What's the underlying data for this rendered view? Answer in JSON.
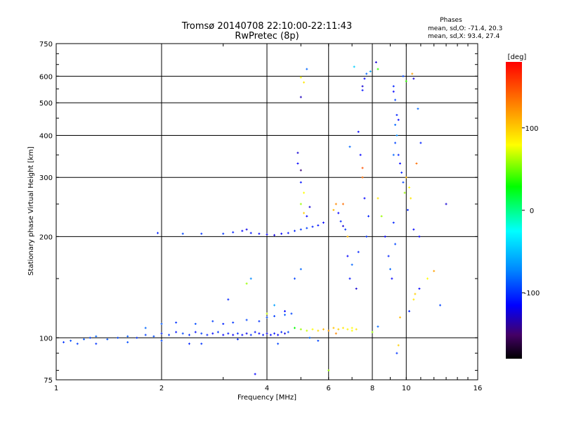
{
  "header": {
    "title": "Tromsø 20140708 22:10:00-22:11:43",
    "subtitle": "RwPretec (8p)",
    "phases_heading": "Phases",
    "phases_o": "mean, sd,O: -71.4, 20.3",
    "phases_x": "mean, sd,X:  93.4, 27.4"
  },
  "chart_data": {
    "type": "scatter",
    "xlabel": "Frequency [MHz]",
    "ylabel": "Stationary phase Virtual Height [km]",
    "x_scale": "log",
    "y_scale": "log",
    "xlim": [
      1,
      16
    ],
    "ylim": [
      75,
      750
    ],
    "x_ticks": [
      1,
      2,
      4,
      6,
      8,
      10,
      16
    ],
    "x_tick_labels": [
      "1",
      "2",
      "4",
      "6",
      "8",
      "10",
      "16"
    ],
    "y_ticks": [
      75,
      100,
      200,
      300,
      400,
      500,
      600,
      750
    ],
    "y_tick_labels": [
      "75",
      "100",
      "200",
      "300",
      "400",
      "500",
      "600",
      "750"
    ],
    "grid": true,
    "colorbar": {
      "label": "[deg]",
      "range": [
        -180,
        180
      ],
      "ticks": [
        100,
        0,
        -100
      ],
      "tick_labels": [
        "100",
        "0",
        "-100"
      ]
    },
    "series": [
      {
        "comment_free_points": true,
        "points": [
          [
            1.05,
            97,
            -95
          ],
          [
            1.1,
            98,
            -88
          ],
          [
            1.15,
            96,
            -92
          ],
          [
            1.2,
            99,
            -85
          ],
          [
            1.25,
            100,
            -90
          ],
          [
            1.3,
            101,
            -80
          ],
          [
            1.4,
            99,
            -86
          ],
          [
            1.5,
            100,
            -90
          ],
          [
            1.6,
            101,
            -84
          ],
          [
            1.7,
            100,
            -96
          ],
          [
            1.8,
            102,
            -92
          ],
          [
            1.9,
            101,
            -88
          ],
          [
            2.0,
            103,
            -100
          ],
          [
            2.1,
            102,
            -94
          ],
          [
            2.2,
            104,
            -104
          ],
          [
            2.3,
            103,
            -90
          ],
          [
            2.4,
            102,
            -98
          ],
          [
            2.5,
            104,
            -106
          ],
          [
            2.6,
            103,
            -92
          ],
          [
            2.7,
            102,
            -100
          ],
          [
            2.8,
            103,
            -108
          ],
          [
            2.9,
            104,
            -96
          ],
          [
            3.0,
            102,
            -110
          ],
          [
            3.1,
            103,
            -104
          ],
          [
            3.2,
            102,
            -112
          ],
          [
            3.3,
            103,
            -100
          ],
          [
            3.4,
            102,
            -108
          ],
          [
            3.5,
            103,
            -114
          ],
          [
            3.6,
            102,
            -98
          ],
          [
            3.7,
            104,
            -106
          ],
          [
            3.8,
            103,
            -110
          ],
          [
            3.9,
            102,
            -102
          ],
          [
            4.0,
            103,
            -116
          ],
          [
            4.1,
            102,
            -108
          ],
          [
            4.2,
            103,
            -104
          ],
          [
            4.3,
            102,
            -112
          ],
          [
            4.4,
            104,
            -100
          ],
          [
            4.5,
            103,
            -118
          ],
          [
            4.6,
            104,
            -90
          ],
          [
            4.8,
            107,
            30
          ],
          [
            5.0,
            106,
            60
          ],
          [
            5.2,
            105,
            70
          ],
          [
            5.4,
            106,
            80
          ],
          [
            5.6,
            105,
            95
          ],
          [
            5.8,
            106,
            110
          ],
          [
            6.0,
            105,
            120
          ],
          [
            6.2,
            107,
            105
          ],
          [
            6.4,
            106,
            100
          ],
          [
            6.6,
            107,
            90
          ],
          [
            6.8,
            106,
            85
          ],
          [
            7.0,
            107,
            80
          ],
          [
            1.8,
            107,
            -80
          ],
          [
            2.0,
            110,
            -85
          ],
          [
            2.2,
            111,
            -95
          ],
          [
            2.5,
            110,
            -88
          ],
          [
            2.8,
            112,
            -92
          ],
          [
            3.0,
            110,
            -100
          ],
          [
            3.2,
            111,
            -94
          ],
          [
            3.5,
            113,
            -90
          ],
          [
            3.8,
            112,
            -96
          ],
          [
            4.0,
            115,
            -88
          ],
          [
            4.2,
            116,
            -92
          ],
          [
            4.5,
            117,
            -84
          ],
          [
            4.7,
            118,
            -90
          ],
          [
            3.0,
            204,
            -95
          ],
          [
            3.2,
            206,
            -100
          ],
          [
            3.4,
            208,
            -110
          ],
          [
            3.5,
            210,
            -115
          ],
          [
            3.6,
            205,
            -105
          ],
          [
            3.8,
            204,
            -108
          ],
          [
            4.0,
            203,
            -112
          ],
          [
            4.2,
            202,
            -118
          ],
          [
            4.4,
            204,
            -110
          ],
          [
            4.6,
            205,
            -104
          ],
          [
            4.8,
            208,
            -100
          ],
          [
            5.0,
            210,
            -95
          ],
          [
            5.2,
            212,
            -92
          ],
          [
            5.4,
            214,
            -100
          ],
          [
            5.6,
            216,
            -105
          ],
          [
            5.8,
            220,
            -110
          ],
          [
            1.95,
            205,
            -100
          ],
          [
            2.3,
            204,
            -90
          ],
          [
            2.6,
            204,
            -95
          ],
          [
            4.9,
            355,
            -120
          ],
          [
            4.9,
            330,
            -110
          ],
          [
            5.0,
            315,
            -140
          ],
          [
            5.0,
            290,
            -105
          ],
          [
            5.1,
            270,
            80
          ],
          [
            5.0,
            250,
            60
          ],
          [
            5.1,
            235,
            100
          ],
          [
            5.2,
            230,
            -110
          ],
          [
            5.3,
            245,
            -120
          ],
          [
            5.0,
            520,
            -125
          ],
          [
            5.1,
            575,
            90
          ],
          [
            5.2,
            630,
            -80
          ],
          [
            5.0,
            595,
            80
          ],
          [
            6.2,
            240,
            110
          ],
          [
            6.3,
            250,
            130
          ],
          [
            6.4,
            235,
            -110
          ],
          [
            6.5,
            222,
            -100
          ],
          [
            6.6,
            215,
            -120
          ],
          [
            6.7,
            210,
            -95
          ],
          [
            6.8,
            200,
            110
          ],
          [
            6.6,
            250,
            140
          ],
          [
            6.8,
            175,
            -110
          ],
          [
            6.9,
            150,
            -105
          ],
          [
            7.0,
            165,
            -80
          ],
          [
            7.2,
            140,
            -120
          ],
          [
            7.3,
            180,
            -100
          ],
          [
            7.4,
            350,
            -110
          ],
          [
            7.5,
            320,
            150
          ],
          [
            7.5,
            300,
            140
          ],
          [
            7.6,
            260,
            -110
          ],
          [
            7.7,
            200,
            -95
          ],
          [
            7.8,
            230,
            -100
          ],
          [
            7.5,
            545,
            -105
          ],
          [
            7.5,
            560,
            -120
          ],
          [
            7.6,
            590,
            -110
          ],
          [
            7.7,
            610,
            -80
          ],
          [
            7.9,
            620,
            -60
          ],
          [
            8.2,
            660,
            -120
          ],
          [
            8.3,
            630,
            40
          ],
          [
            7.3,
            410,
            -110
          ],
          [
            7.1,
            640,
            -40
          ],
          [
            6.9,
            370,
            -80
          ],
          [
            8.5,
            230,
            60
          ],
          [
            8.3,
            260,
            90
          ],
          [
            8.7,
            200,
            -110
          ],
          [
            8.9,
            175,
            -100
          ],
          [
            9.0,
            160,
            -80
          ],
          [
            9.2,
            560,
            -100
          ],
          [
            9.2,
            540,
            -110
          ],
          [
            9.3,
            510,
            -90
          ],
          [
            9.4,
            460,
            -100
          ],
          [
            9.5,
            445,
            -110
          ],
          [
            9.3,
            430,
            -80
          ],
          [
            9.4,
            400,
            -70
          ],
          [
            9.3,
            380,
            -90
          ],
          [
            9.5,
            350,
            -100
          ],
          [
            9.6,
            330,
            -110
          ],
          [
            9.7,
            310,
            -100
          ],
          [
            9.8,
            290,
            -90
          ],
          [
            9.9,
            270,
            60
          ],
          [
            10.0,
            300,
            110
          ],
          [
            10.2,
            280,
            80
          ],
          [
            10.3,
            260,
            90
          ],
          [
            10.1,
            240,
            -100
          ],
          [
            9.8,
            600,
            -90
          ],
          [
            10.0,
            580,
            40
          ],
          [
            10.4,
            610,
            120
          ],
          [
            10.5,
            590,
            -120
          ],
          [
            10.7,
            330,
            140
          ],
          [
            10.5,
            210,
            -110
          ],
          [
            10.8,
            480,
            -80
          ],
          [
            11.0,
            380,
            -100
          ],
          [
            10.9,
            200,
            -110
          ],
          [
            9.2,
            350,
            -80
          ],
          [
            9.2,
            220,
            -100
          ],
          [
            9.3,
            190,
            -90
          ],
          [
            9.1,
            150,
            -110
          ],
          [
            9.4,
            90,
            -95
          ],
          [
            9.5,
            95,
            100
          ],
          [
            9.6,
            115,
            110
          ],
          [
            10.2,
            120,
            -100
          ],
          [
            10.5,
            130,
            90
          ],
          [
            10.6,
            135,
            100
          ],
          [
            10.9,
            140,
            -110
          ],
          [
            11.5,
            150,
            80
          ],
          [
            12.0,
            158,
            120
          ],
          [
            13.0,
            250,
            -120
          ],
          [
            12.5,
            125,
            -90
          ],
          [
            5.3,
            100,
            -80
          ],
          [
            5.6,
            98,
            -90
          ],
          [
            6.0,
            80,
            60
          ],
          [
            6.3,
            103,
            130
          ],
          [
            7.0,
            105,
            80
          ],
          [
            7.2,
            106,
            90
          ],
          [
            8.0,
            104,
            60
          ],
          [
            8.3,
            108,
            -80
          ],
          [
            3.5,
            145,
            60
          ],
          [
            3.6,
            150,
            -70
          ],
          [
            3.1,
            130,
            -100
          ],
          [
            4.0,
            118,
            70
          ],
          [
            4.2,
            125,
            -60
          ],
          [
            4.5,
            120,
            -110
          ],
          [
            4.8,
            150,
            -90
          ],
          [
            5.0,
            160,
            -80
          ],
          [
            3.7,
            78,
            -110
          ],
          [
            4.3,
            96,
            -90
          ],
          [
            2.4,
            96,
            -100
          ],
          [
            2.6,
            96,
            -95
          ],
          [
            1.3,
            96,
            -95
          ],
          [
            1.6,
            97,
            -88
          ],
          [
            2.0,
            98,
            -90
          ],
          [
            3.3,
            99,
            -100
          ]
        ]
      }
    ]
  }
}
